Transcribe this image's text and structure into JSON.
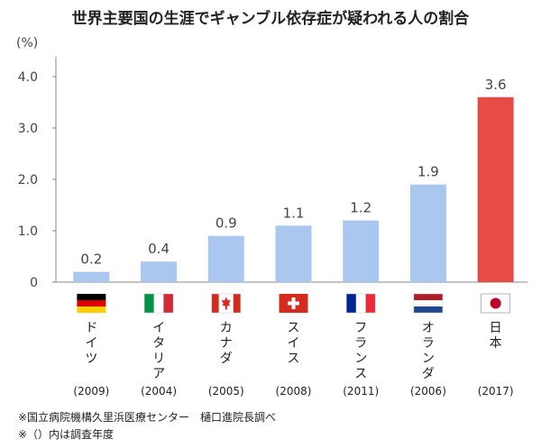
{
  "chart_data": {
    "type": "bar",
    "title": "世界主要国の生涯でギャンブル依存症が疑われる人の割合",
    "ylabel": "(%)",
    "ylim": [
      0,
      4.0
    ],
    "yticks": [
      "0",
      "1.0",
      "2.0",
      "3.0",
      "4.0"
    ],
    "grid": false,
    "categories": [
      "ドイツ",
      "イタリア",
      "カナダ",
      "スイス",
      "フランス",
      "オランダ",
      "日本"
    ],
    "years": [
      "(2009)",
      "(2004)",
      "(2005)",
      "(2008)",
      "(2011)",
      "(2006)",
      "(2017)"
    ],
    "values": [
      0.2,
      0.4,
      0.9,
      1.1,
      1.2,
      1.9,
      3.6
    ],
    "value_labels": [
      "0.2",
      "0.4",
      "0.9",
      "1.1",
      "1.2",
      "1.9",
      "3.6"
    ],
    "flags": [
      "germany-flag",
      "italy-flag",
      "canada-flag",
      "switzerland-flag",
      "france-flag",
      "netherlands-flag",
      "japan-flag"
    ],
    "colors": {
      "bar": "#aac8ef",
      "highlight_bar": "#e64b45",
      "highlight_label": "#cc3b37",
      "axis": "#888888"
    },
    "highlight_index": 6
  },
  "notes": [
    "※国立病院機構久里浜医療センター　樋口進院長調べ",
    "※（）内は調査年度"
  ]
}
